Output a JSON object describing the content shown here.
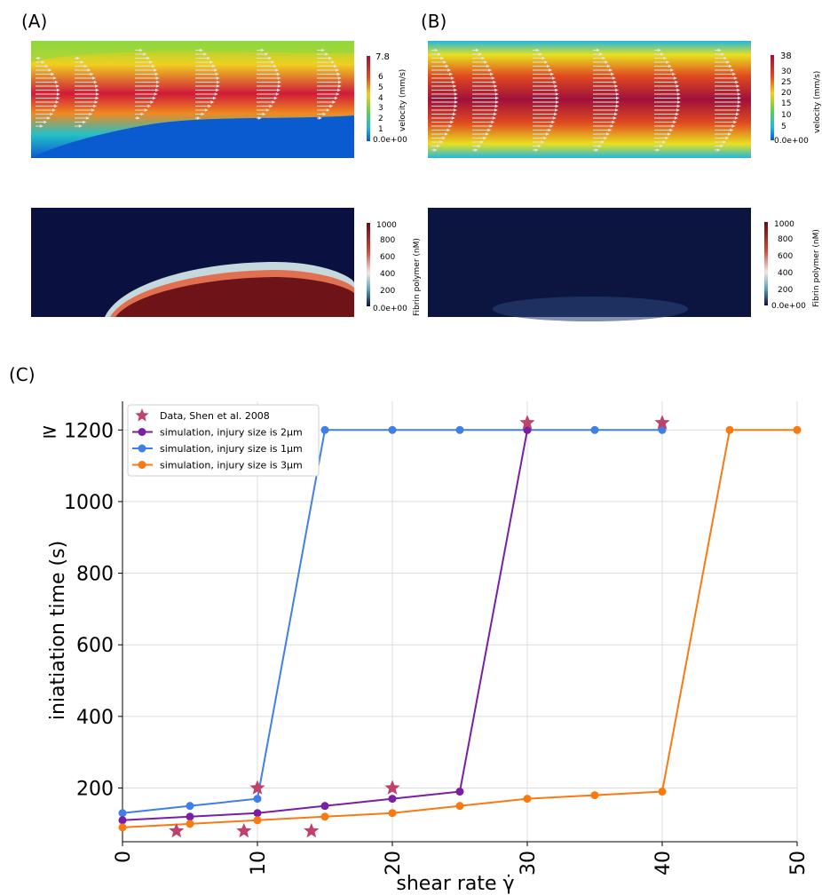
{
  "panels": {
    "a_label": "(A)",
    "b_label": "(B)",
    "c_label": "(C)"
  },
  "colorbars": {
    "velocity_a": {
      "title": "velocity (mm/s)",
      "max": "7.8",
      "ticks": [
        "6",
        "5",
        "4",
        "3",
        "2",
        "1"
      ],
      "min": "0.0e+00"
    },
    "velocity_b": {
      "title": "velocity (mm/s)",
      "max": "38",
      "ticks": [
        "30",
        "25",
        "20",
        "15",
        "10",
        "5"
      ],
      "min": "0.0e+00"
    },
    "fibrin_a": {
      "title": "Fibrin polymer (nM)",
      "max": "1000",
      "ticks": [
        "800",
        "600",
        "400",
        "200"
      ],
      "min": "0.0e+00"
    },
    "fibrin_b": {
      "title": "Fibrin polymer (nM)",
      "max": "1000",
      "ticks": [
        "800",
        "600",
        "400",
        "200"
      ],
      "min": "0.0e+00"
    }
  },
  "chart_data": {
    "type": "line",
    "xlabel": "shear rate γ̇",
    "ylabel": "iniatiation time (s)",
    "xlim": [
      0,
      50
    ],
    "ylim": [
      50,
      1280
    ],
    "xticks": [
      0,
      10,
      20,
      30,
      40,
      50
    ],
    "yticks": [
      200,
      400,
      600,
      800,
      1000,
      1200
    ],
    "ytick_labels": [
      "200",
      "400",
      "600",
      "800",
      "1000",
      "≥ 1200"
    ],
    "grid": true,
    "legend_position": "top-left",
    "series": [
      {
        "name": "Data, Shen et al. 2008",
        "marker": "star",
        "color": "#c0426b",
        "x": [
          4,
          9,
          10,
          14,
          20,
          30,
          40
        ],
        "y": [
          80,
          80,
          200,
          80,
          200,
          1220,
          1220
        ]
      },
      {
        "name": "simulation, injury size is 2µm",
        "marker": "circle",
        "color": "#7b1fa2",
        "x": [
          0,
          5,
          10,
          15,
          20,
          25,
          30
        ],
        "y": [
          110,
          120,
          130,
          150,
          170,
          190,
          1200
        ]
      },
      {
        "name": "simulation, injury size is 1µm",
        "marker": "circle",
        "color": "#3f7fe8",
        "x": [
          0,
          5,
          10,
          15,
          20,
          25,
          30,
          35,
          40
        ],
        "y": [
          130,
          150,
          170,
          1200,
          1200,
          1200,
          1200,
          1200,
          1200
        ]
      },
      {
        "name": "simulation, injury size is 3µm",
        "marker": "circle",
        "color": "#f97a10",
        "x": [
          0,
          5,
          10,
          15,
          20,
          25,
          30,
          35,
          40,
          45,
          50
        ],
        "y": [
          90,
          100,
          110,
          120,
          130,
          150,
          170,
          180,
          190,
          1200,
          1200
        ]
      }
    ]
  }
}
